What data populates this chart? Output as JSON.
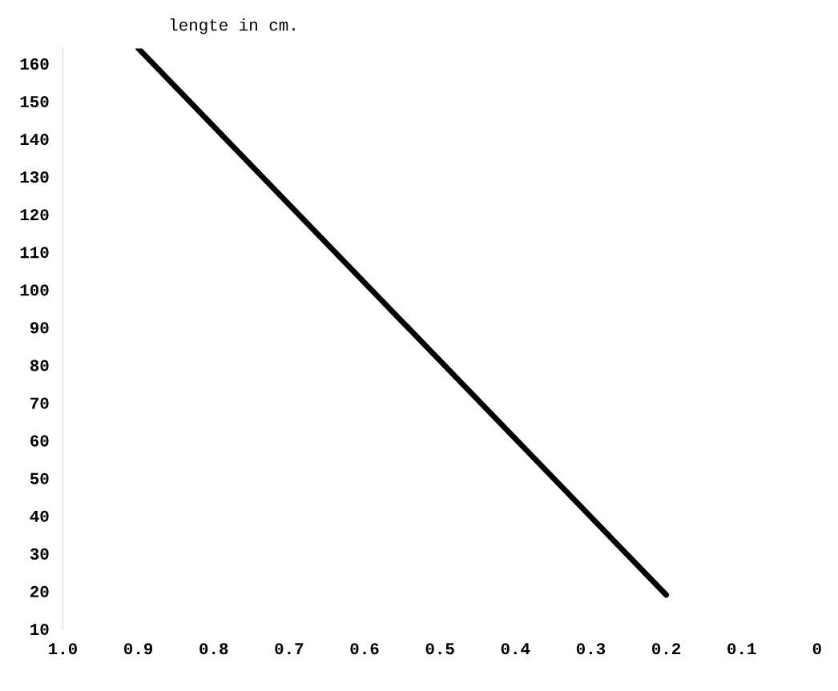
{
  "chart_data": {
    "type": "line",
    "ylabel": "lengte in cm.",
    "x": [
      0.9,
      0.2
    ],
    "series": [
      {
        "color": "#000000",
        "values": [
          164,
          19
        ]
      }
    ],
    "xlim": [
      1.0,
      0
    ],
    "xticks": [
      {
        "value": 1.0,
        "label": "1.0"
      },
      0.9,
      0.8,
      0.7,
      0.6,
      0.5,
      0.4,
      0.3,
      0.2,
      0.1,
      0
    ],
    "ylim": [
      10,
      164
    ],
    "yticks": [
      10,
      20,
      30,
      40,
      50,
      60,
      70,
      80,
      90,
      100,
      110,
      120,
      130,
      140,
      150,
      160
    ],
    "grid": false,
    "legend": false,
    "marker": "none",
    "line_style": "solid"
  }
}
